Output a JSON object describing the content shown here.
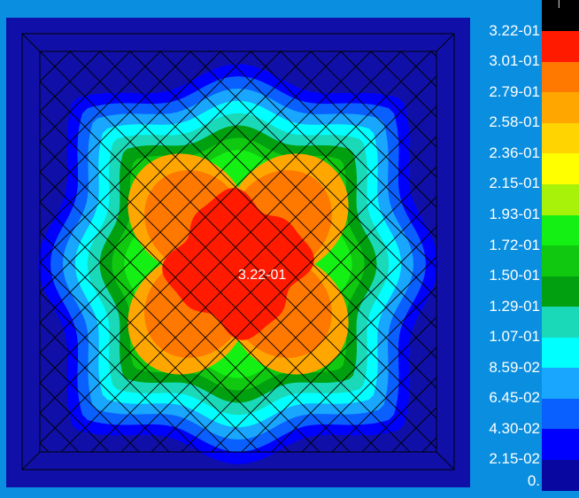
{
  "chart_data": {
    "type": "heatmap",
    "title": "",
    "legend": {
      "levels": [
        {
          "label": "0.",
          "color": "#0808a0"
        },
        {
          "label": "2.15-02",
          "color": "#0000ff"
        },
        {
          "label": "4.30-02",
          "color": "#0a5fff"
        },
        {
          "label": "6.45-02",
          "color": "#18a6ff"
        },
        {
          "label": "8.59-02",
          "color": "#00ffff"
        },
        {
          "label": "1.07-01",
          "color": "#1ad9b8"
        },
        {
          "label": "1.29-01",
          "color": "#00a010"
        },
        {
          "label": "1.50-01",
          "color": "#10c810"
        },
        {
          "label": "1.72-01",
          "color": "#14f014"
        },
        {
          "label": "1.93-01",
          "color": "#a8f20a"
        },
        {
          "label": "2.15-01",
          "color": "#ffff00"
        },
        {
          "label": "2.36-01",
          "color": "#ffd400"
        },
        {
          "label": "2.58-01",
          "color": "#ffa700"
        },
        {
          "label": "2.79-01",
          "color": "#ff7800"
        },
        {
          "label": "3.01-01",
          "color": "#ff1a00"
        },
        {
          "label": "3.22-01",
          "color": "#000000"
        }
      ],
      "top_swatch_mark": "|"
    },
    "peak_value": 0.322,
    "peak_label": "3.22-01",
    "min_value": 0,
    "max_value": 0.322,
    "background_color": "#1010a8",
    "mesh_color": "#000000"
  }
}
